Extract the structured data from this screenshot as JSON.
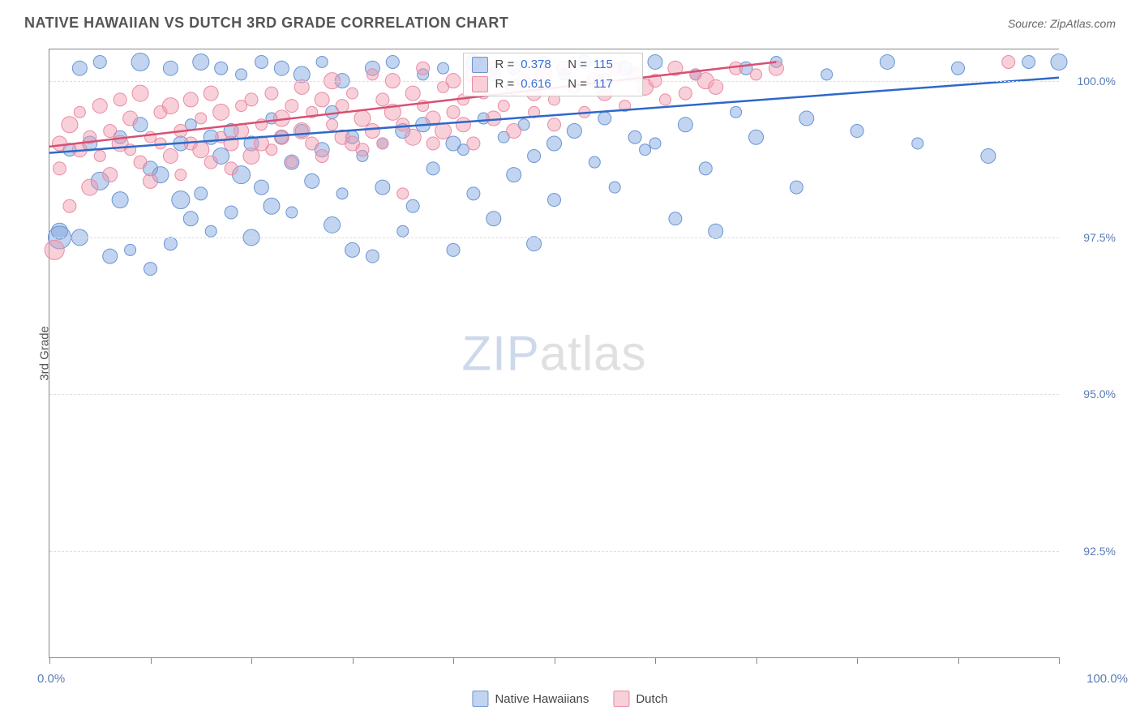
{
  "title": "NATIVE HAWAIIAN VS DUTCH 3RD GRADE CORRELATION CHART",
  "source": "Source: ZipAtlas.com",
  "yaxis_title": "3rd Grade",
  "watermark": {
    "part1": "ZIP",
    "part2": "atlas"
  },
  "chart": {
    "type": "scatter",
    "xlim": [
      0,
      100
    ],
    "ylim": [
      90.8,
      100.5
    ],
    "x_label_min": "0.0%",
    "x_label_max": "100.0%",
    "x_ticks": [
      0,
      10,
      20,
      30,
      40,
      50,
      60,
      70,
      80,
      90,
      100
    ],
    "y_ticks": [
      {
        "v": 92.5,
        "label": "92.5%"
      },
      {
        "v": 95.0,
        "label": "95.0%"
      },
      {
        "v": 97.5,
        "label": "97.5%"
      },
      {
        "v": 100.0,
        "label": "100.0%"
      }
    ],
    "grid_color": "#dddddd",
    "background_color": "#ffffff",
    "series": [
      {
        "name": "Native Hawaiians",
        "color_fill": "rgba(120,160,220,0.45)",
        "color_stroke": "#6a95d6",
        "line_color": "#2e68c9",
        "trend": {
          "x1": 0,
          "y1": 98.85,
          "x2": 100,
          "y2": 100.05
        },
        "R": "0.378",
        "N": "115",
        "points": [
          [
            1,
            97.6,
            10
          ],
          [
            1,
            97.5,
            14
          ],
          [
            2,
            98.9,
            8
          ],
          [
            3,
            100.2,
            9
          ],
          [
            3,
            97.5,
            10
          ],
          [
            4,
            99.0,
            9
          ],
          [
            5,
            100.3,
            8
          ],
          [
            5,
            98.4,
            11
          ],
          [
            6,
            97.2,
            9
          ],
          [
            7,
            99.1,
            8
          ],
          [
            7,
            98.1,
            10
          ],
          [
            8,
            97.3,
            7
          ],
          [
            9,
            99.3,
            9
          ],
          [
            9,
            100.3,
            11
          ],
          [
            10,
            97.0,
            8
          ],
          [
            10,
            98.6,
            9
          ],
          [
            11,
            98.5,
            10
          ],
          [
            12,
            100.2,
            9
          ],
          [
            12,
            97.4,
            8
          ],
          [
            13,
            99.0,
            9
          ],
          [
            13,
            98.1,
            11
          ],
          [
            14,
            99.3,
            7
          ],
          [
            14,
            97.8,
            9
          ],
          [
            15,
            100.3,
            10
          ],
          [
            15,
            98.2,
            8
          ],
          [
            16,
            99.1,
            9
          ],
          [
            16,
            97.6,
            7
          ],
          [
            17,
            98.8,
            10
          ],
          [
            17,
            100.2,
            8
          ],
          [
            18,
            99.2,
            9
          ],
          [
            18,
            97.9,
            8
          ],
          [
            19,
            98.5,
            11
          ],
          [
            19,
            100.1,
            7
          ],
          [
            20,
            99.0,
            9
          ],
          [
            20,
            97.5,
            10
          ],
          [
            21,
            100.3,
            8
          ],
          [
            21,
            98.3,
            9
          ],
          [
            22,
            99.4,
            7
          ],
          [
            22,
            98.0,
            10
          ],
          [
            23,
            100.2,
            9
          ],
          [
            23,
            99.1,
            8
          ],
          [
            24,
            97.9,
            7
          ],
          [
            24,
            98.7,
            9
          ],
          [
            25,
            100.1,
            10
          ],
          [
            25,
            99.2,
            8
          ],
          [
            26,
            98.4,
            9
          ],
          [
            27,
            100.3,
            7
          ],
          [
            27,
            98.9,
            9
          ],
          [
            28,
            99.5,
            8
          ],
          [
            28,
            97.7,
            10
          ],
          [
            29,
            100.0,
            9
          ],
          [
            29,
            98.2,
            7
          ],
          [
            30,
            99.1,
            8
          ],
          [
            30,
            97.3,
            9
          ],
          [
            31,
            98.8,
            7
          ],
          [
            32,
            100.2,
            9
          ],
          [
            32,
            97.2,
            8
          ],
          [
            33,
            99.0,
            7
          ],
          [
            33,
            98.3,
            9
          ],
          [
            34,
            100.3,
            8
          ],
          [
            35,
            97.6,
            7
          ],
          [
            35,
            99.2,
            9
          ],
          [
            36,
            98.0,
            8
          ],
          [
            37,
            100.1,
            7
          ],
          [
            37,
            99.3,
            9
          ],
          [
            38,
            98.6,
            8
          ],
          [
            39,
            100.2,
            7
          ],
          [
            40,
            99.0,
            9
          ],
          [
            40,
            97.3,
            8
          ],
          [
            41,
            98.9,
            7
          ],
          [
            42,
            100.3,
            9
          ],
          [
            42,
            98.2,
            8
          ],
          [
            43,
            99.4,
            7
          ],
          [
            44,
            97.8,
            9
          ],
          [
            44,
            100.1,
            8
          ],
          [
            45,
            99.1,
            7
          ],
          [
            46,
            98.5,
            9
          ],
          [
            46,
            100.2,
            8
          ],
          [
            47,
            99.3,
            7
          ],
          [
            48,
            97.4,
            9
          ],
          [
            48,
            98.8,
            8
          ],
          [
            49,
            100.3,
            7
          ],
          [
            50,
            99.0,
            9
          ],
          [
            50,
            98.1,
            8
          ],
          [
            51,
            100.1,
            7
          ],
          [
            52,
            99.2,
            9
          ],
          [
            53,
            100.3,
            8
          ],
          [
            54,
            98.7,
            7
          ],
          [
            55,
            100.0,
            9
          ],
          [
            55,
            99.4,
            8
          ],
          [
            56,
            98.3,
            7
          ],
          [
            57,
            100.2,
            9
          ],
          [
            58,
            99.1,
            8
          ],
          [
            59,
            98.9,
            7
          ],
          [
            60,
            100.3,
            9
          ],
          [
            60,
            99.0,
            7
          ],
          [
            62,
            97.8,
            8
          ],
          [
            63,
            99.3,
            9
          ],
          [
            64,
            100.1,
            7
          ],
          [
            65,
            98.6,
            8
          ],
          [
            66,
            97.6,
            9
          ],
          [
            68,
            99.5,
            7
          ],
          [
            69,
            100.2,
            8
          ],
          [
            70,
            99.1,
            9
          ],
          [
            72,
            100.3,
            7
          ],
          [
            74,
            98.3,
            8
          ],
          [
            75,
            99.4,
            9
          ],
          [
            77,
            100.1,
            7
          ],
          [
            80,
            99.2,
            8
          ],
          [
            83,
            100.3,
            9
          ],
          [
            86,
            99.0,
            7
          ],
          [
            90,
            100.2,
            8
          ],
          [
            93,
            98.8,
            9
          ],
          [
            97,
            100.3,
            8
          ],
          [
            100,
            100.3,
            10
          ]
        ]
      },
      {
        "name": "Dutch",
        "color_fill": "rgba(240,150,170,0.45)",
        "color_stroke": "#e98ba3",
        "line_color": "#d94f72",
        "trend": {
          "x1": 0,
          "y1": 98.95,
          "x2": 72,
          "y2": 100.3
        },
        "R": "0.616",
        "N": "117",
        "points": [
          [
            0.5,
            97.3,
            12
          ],
          [
            1,
            99.0,
            9
          ],
          [
            1,
            98.6,
            8
          ],
          [
            2,
            99.3,
            10
          ],
          [
            2,
            98.0,
            8
          ],
          [
            3,
            98.9,
            9
          ],
          [
            3,
            99.5,
            7
          ],
          [
            4,
            99.1,
            8
          ],
          [
            4,
            98.3,
            10
          ],
          [
            5,
            99.6,
            9
          ],
          [
            5,
            98.8,
            7
          ],
          [
            6,
            99.2,
            8
          ],
          [
            6,
            98.5,
            9
          ],
          [
            7,
            99.0,
            10
          ],
          [
            7,
            99.7,
            8
          ],
          [
            8,
            98.9,
            7
          ],
          [
            8,
            99.4,
            9
          ],
          [
            9,
            98.7,
            8
          ],
          [
            9,
            99.8,
            10
          ],
          [
            10,
            99.1,
            7
          ],
          [
            10,
            98.4,
            9
          ],
          [
            11,
            99.5,
            8
          ],
          [
            11,
            99.0,
            7
          ],
          [
            12,
            98.8,
            9
          ],
          [
            12,
            99.6,
            10
          ],
          [
            13,
            99.2,
            8
          ],
          [
            13,
            98.5,
            7
          ],
          [
            14,
            99.7,
            9
          ],
          [
            14,
            99.0,
            8
          ],
          [
            15,
            98.9,
            10
          ],
          [
            15,
            99.4,
            7
          ],
          [
            16,
            99.8,
            9
          ],
          [
            16,
            98.7,
            8
          ],
          [
            17,
            99.1,
            7
          ],
          [
            17,
            99.5,
            10
          ],
          [
            18,
            99.0,
            9
          ],
          [
            18,
            98.6,
            8
          ],
          [
            19,
            99.6,
            7
          ],
          [
            19,
            99.2,
            9
          ],
          [
            20,
            98.8,
            10
          ],
          [
            20,
            99.7,
            8
          ],
          [
            21,
            99.3,
            7
          ],
          [
            21,
            99.0,
            9
          ],
          [
            22,
            99.8,
            8
          ],
          [
            22,
            98.9,
            7
          ],
          [
            23,
            99.4,
            10
          ],
          [
            23,
            99.1,
            9
          ],
          [
            24,
            99.6,
            8
          ],
          [
            24,
            98.7,
            7
          ],
          [
            25,
            99.9,
            9
          ],
          [
            25,
            99.2,
            10
          ],
          [
            26,
            99.0,
            8
          ],
          [
            26,
            99.5,
            7
          ],
          [
            27,
            99.7,
            9
          ],
          [
            27,
            98.8,
            8
          ],
          [
            28,
            99.3,
            7
          ],
          [
            28,
            100.0,
            10
          ],
          [
            29,
            99.1,
            9
          ],
          [
            29,
            99.6,
            8
          ],
          [
            30,
            99.8,
            7
          ],
          [
            30,
            99.0,
            9
          ],
          [
            31,
            99.4,
            10
          ],
          [
            31,
            98.9,
            8
          ],
          [
            32,
            100.1,
            7
          ],
          [
            32,
            99.2,
            9
          ],
          [
            33,
            99.7,
            8
          ],
          [
            33,
            99.0,
            7
          ],
          [
            34,
            99.5,
            10
          ],
          [
            34,
            100.0,
            9
          ],
          [
            35,
            99.3,
            8
          ],
          [
            35,
            98.2,
            7
          ],
          [
            36,
            99.8,
            9
          ],
          [
            36,
            99.1,
            10
          ],
          [
            37,
            100.2,
            8
          ],
          [
            37,
            99.6,
            7
          ],
          [
            38,
            99.4,
            9
          ],
          [
            38,
            99.0,
            8
          ],
          [
            39,
            99.9,
            7
          ],
          [
            39,
            99.2,
            10
          ],
          [
            40,
            100.0,
            9
          ],
          [
            40,
            99.5,
            8
          ],
          [
            41,
            99.7,
            7
          ],
          [
            41,
            99.3,
            9
          ],
          [
            42,
            100.1,
            10
          ],
          [
            42,
            99.0,
            8
          ],
          [
            43,
            99.8,
            7
          ],
          [
            44,
            99.4,
            9
          ],
          [
            44,
            100.2,
            8
          ],
          [
            45,
            99.6,
            7
          ],
          [
            46,
            99.9,
            10
          ],
          [
            46,
            99.2,
            9
          ],
          [
            47,
            100.0,
            8
          ],
          [
            48,
            99.5,
            7
          ],
          [
            48,
            99.8,
            9
          ],
          [
            49,
            100.1,
            10
          ],
          [
            50,
            99.3,
            8
          ],
          [
            50,
            99.7,
            7
          ],
          [
            51,
            100.2,
            9
          ],
          [
            52,
            99.9,
            8
          ],
          [
            53,
            99.5,
            7
          ],
          [
            54,
            100.0,
            10
          ],
          [
            55,
            99.8,
            9
          ],
          [
            56,
            100.2,
            8
          ],
          [
            57,
            99.6,
            7
          ],
          [
            58,
            100.1,
            9
          ],
          [
            59,
            99.9,
            10
          ],
          [
            60,
            100.0,
            8
          ],
          [
            61,
            99.7,
            7
          ],
          [
            62,
            100.2,
            9
          ],
          [
            63,
            99.8,
            8
          ],
          [
            64,
            100.1,
            7
          ],
          [
            65,
            100.0,
            10
          ],
          [
            66,
            99.9,
            9
          ],
          [
            68,
            100.2,
            8
          ],
          [
            70,
            100.1,
            7
          ],
          [
            72,
            100.2,
            9
          ],
          [
            95,
            100.3,
            8
          ]
        ]
      }
    ]
  },
  "stats_box": {
    "left_pct": 41,
    "top_pct": 0.5
  },
  "legend": [
    {
      "label": "Native Hawaiians",
      "fill": "rgba(120,160,220,0.45)",
      "stroke": "#6a95d6"
    },
    {
      "label": "Dutch",
      "fill": "rgba(240,150,170,0.45)",
      "stroke": "#e98ba3"
    }
  ]
}
